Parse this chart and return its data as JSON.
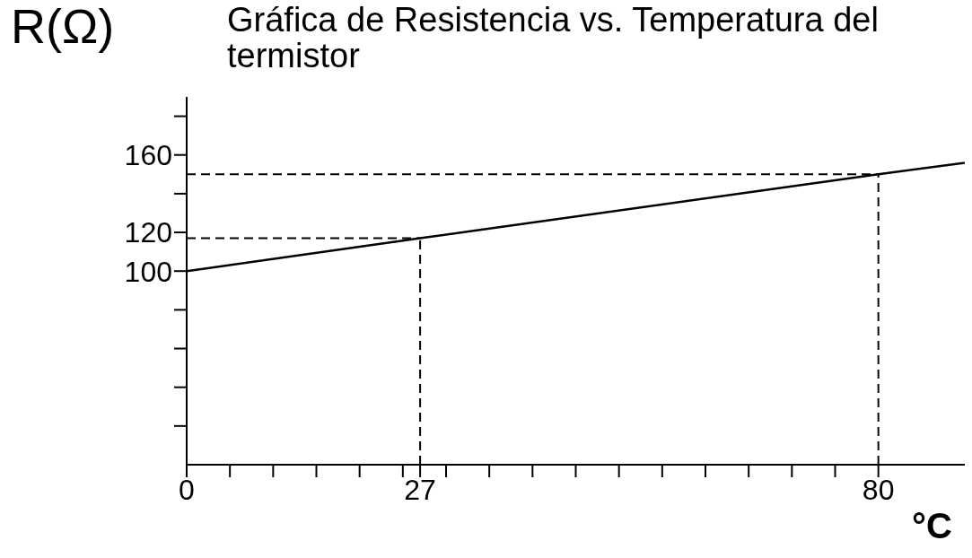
{
  "chart_data": {
    "type": "line",
    "title": "Gráfica de Resistencia vs. Temperatura del termistor",
    "xlabel": "°C",
    "ylabel": "R(Ω)",
    "x": [
      0,
      27,
      80,
      90
    ],
    "series": [
      {
        "color": "#000000",
        "values": [
          100,
          117,
          150,
          156
        ]
      }
    ],
    "xlim": [
      0,
      90
    ],
    "xticks": [
      0,
      {
        "value": 5,
        "label": null
      },
      {
        "value": 10,
        "label": null
      },
      {
        "value": 15,
        "label": null
      },
      {
        "value": 20,
        "label": null
      },
      {
        "value": 25,
        "label": null
      },
      27,
      {
        "value": 30,
        "label": null
      },
      {
        "value": 35,
        "label": null
      },
      {
        "value": 40,
        "label": null
      },
      {
        "value": 45,
        "label": null
      },
      {
        "value": 50,
        "label": null
      },
      {
        "value": 55,
        "label": null
      },
      {
        "value": 60,
        "label": null
      },
      {
        "value": 65,
        "label": null
      },
      {
        "value": 70,
        "label": null
      },
      {
        "value": 75,
        "label": null
      },
      80
    ],
    "ylim": [
      0,
      190
    ],
    "yticks": [
      {
        "value": 20,
        "label": null
      },
      {
        "value": 40,
        "label": null
      },
      {
        "value": 60,
        "label": null
      },
      {
        "value": 80,
        "label": null
      },
      100,
      120,
      {
        "value": 140,
        "label": null
      },
      160,
      {
        "value": 180,
        "label": null
      }
    ],
    "ref_lines": [
      {
        "axis": "y",
        "value": 117,
        "line_style": "dashed"
      },
      {
        "axis": "x",
        "value": 27,
        "line_style": "dashed"
      },
      {
        "axis": "y",
        "value": 150,
        "line_style": "dashed"
      },
      {
        "axis": "x",
        "value": 80,
        "line_style": "dashed"
      }
    ],
    "marker": "none",
    "line_style": "solid",
    "grid": false,
    "legend": false
  }
}
